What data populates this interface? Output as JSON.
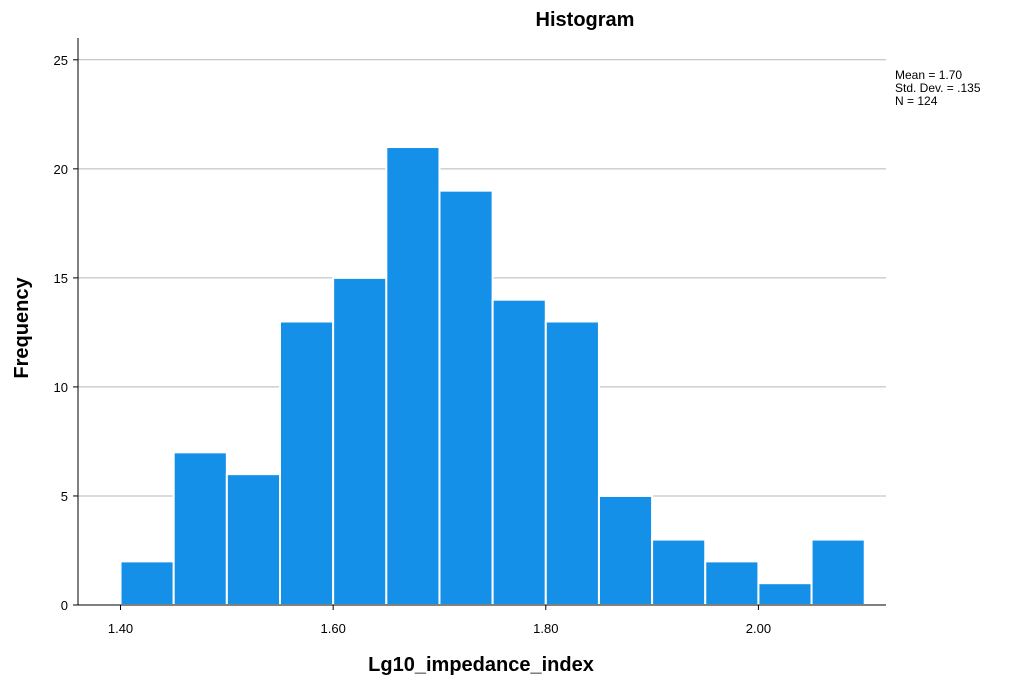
{
  "chart_data": {
    "type": "bar",
    "title": "Histogram",
    "xlabel": "Lg10_impedance_index",
    "ylabel": "Frequency",
    "bin_width": 0.05,
    "bin_starts": [
      1.4,
      1.45,
      1.5,
      1.55,
      1.6,
      1.65,
      1.7,
      1.75,
      1.8,
      1.85,
      1.9,
      1.95,
      2.0,
      2.05
    ],
    "values": [
      2,
      7,
      6,
      13,
      15,
      21,
      19,
      14,
      13,
      5,
      3,
      2,
      1,
      3
    ],
    "xlim": [
      1.36,
      2.12
    ],
    "ylim": [
      0,
      26
    ],
    "x_ticks": [
      1.4,
      1.6,
      1.8,
      2.0
    ],
    "x_tick_labels": [
      "1.40",
      "1.60",
      "1.80",
      "2.00"
    ],
    "y_ticks": [
      0,
      5,
      10,
      15,
      20,
      25
    ],
    "y_tick_labels": [
      "0",
      "5",
      "10",
      "15",
      "20",
      "25"
    ],
    "grid": true,
    "bar_color": "#1490E8",
    "stats": [
      "Mean = 1.70",
      "Std. Dev. = .135",
      "N = 124"
    ],
    "legend_position": "top-right"
  }
}
